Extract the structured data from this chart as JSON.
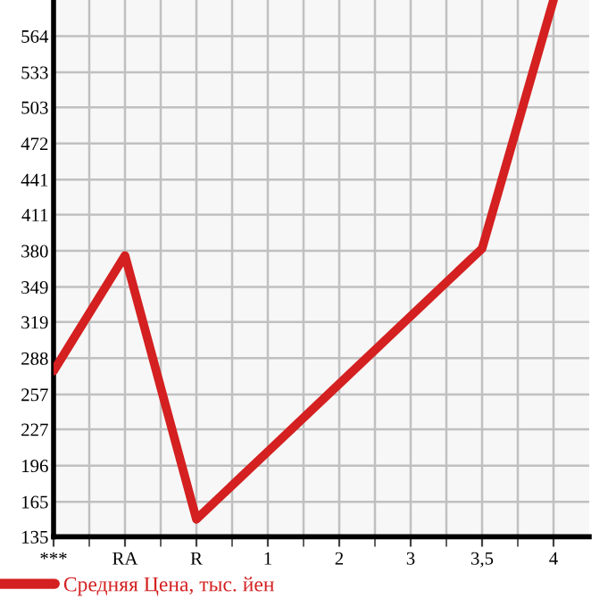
{
  "chart_data": {
    "type": "line",
    "categories": [
      "***",
      "RA",
      "R",
      "1",
      "2",
      "3",
      "3,5",
      "4"
    ],
    "series": [
      {
        "name": "Средняя Цена, тыс. йен",
        "color": "#d42020",
        "values": [
          277,
          376,
          150,
          208,
          266,
          324,
          382,
          595
        ]
      }
    ],
    "ylim": [
      135,
      595
    ],
    "yticks": [
      135,
      165,
      196,
      227,
      257,
      288,
      319,
      349,
      380,
      411,
      441,
      472,
      503,
      533,
      564
    ],
    "grid": true,
    "legend": "bottom",
    "marker": "none",
    "line_style": "solid"
  }
}
